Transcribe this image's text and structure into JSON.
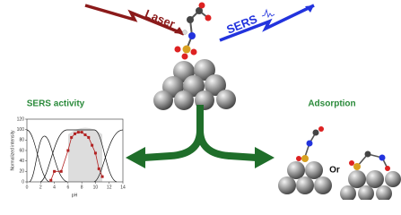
{
  "labels": {
    "laser": "Laser",
    "sers": "SERS",
    "sers_activity": "SERS activity",
    "adsorption": "Adsorption",
    "or": "Or"
  },
  "inset_chart": {
    "type": "scatter",
    "y_label": "Normalized intensity",
    "x_label": "pH",
    "xlim": [
      0,
      14
    ],
    "ylim": [
      0,
      120
    ],
    "xticks": [
      0,
      2,
      4,
      6,
      8,
      10,
      12,
      14
    ],
    "yticks": [
      0,
      20,
      40,
      60,
      80,
      100,
      120
    ],
    "series": [
      {
        "color": "#b22222",
        "x": [
          3.5,
          4,
          5,
          6,
          6.5,
          7,
          7.5,
          8,
          8.5,
          9,
          9.5,
          10,
          10.5,
          11
        ],
        "values": [
          3,
          20,
          20,
          60,
          85,
          92,
          95,
          95,
          90,
          85,
          70,
          55,
          25,
          10
        ]
      }
    ]
  }
}
